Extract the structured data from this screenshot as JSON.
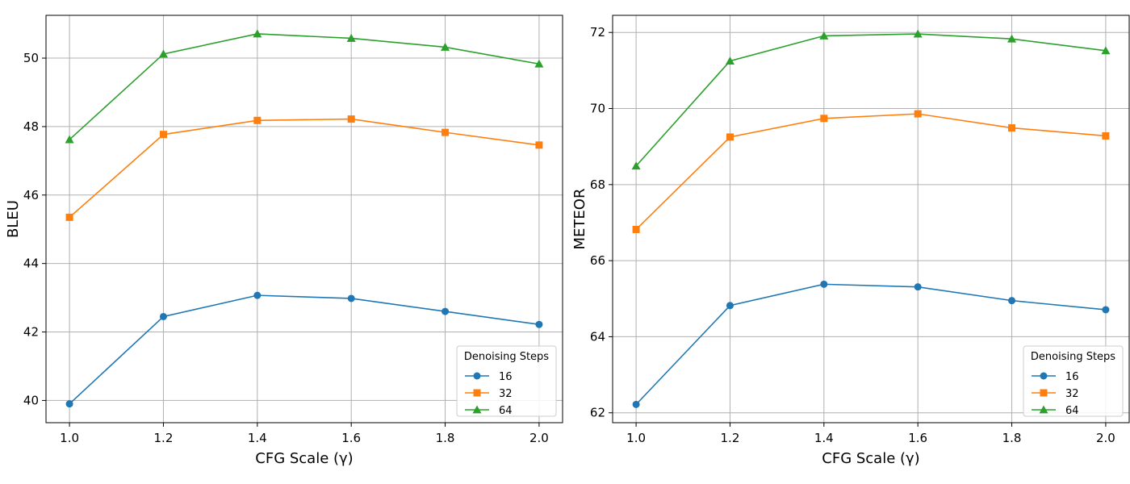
{
  "colors": {
    "16": "#1f77b4",
    "32": "#ff7f0e",
    "64": "#2ca02c",
    "grid": "#b0b0b0"
  },
  "chart_data": [
    {
      "type": "line",
      "title": "",
      "xlabel": "CFG Scale (γ)",
      "ylabel": "BLEU",
      "x": [
        1.0,
        1.2,
        1.4,
        1.6,
        1.8,
        2.0
      ],
      "xticks": [
        "1.0",
        "1.2",
        "1.4",
        "1.6",
        "1.8",
        "2.0"
      ],
      "xlim": [
        0.95,
        2.05
      ],
      "ylim": [
        39.35,
        51.25
      ],
      "yticks": [
        "40",
        "42",
        "44",
        "46",
        "48",
        "50"
      ],
      "yvals": [
        40,
        42,
        44,
        46,
        48,
        50
      ],
      "grid": true,
      "legend": {
        "title": "Denoising Steps",
        "placement": "lower-right"
      },
      "series": [
        {
          "name": "16",
          "marker": "circle",
          "values": [
            39.9,
            42.45,
            43.07,
            42.98,
            42.6,
            42.22
          ]
        },
        {
          "name": "32",
          "marker": "square",
          "values": [
            45.35,
            47.77,
            48.18,
            48.22,
            47.83,
            47.46
          ]
        },
        {
          "name": "64",
          "marker": "triangle",
          "values": [
            47.62,
            50.12,
            50.71,
            50.58,
            50.32,
            49.83
          ]
        }
      ]
    },
    {
      "type": "line",
      "title": "",
      "xlabel": "CFG Scale (γ)",
      "ylabel": "METEOR",
      "x": [
        1.0,
        1.2,
        1.4,
        1.6,
        1.8,
        2.0
      ],
      "xticks": [
        "1.0",
        "1.2",
        "1.4",
        "1.6",
        "1.8",
        "2.0"
      ],
      "xlim": [
        0.95,
        2.05
      ],
      "ylim": [
        61.74,
        72.45
      ],
      "yticks": [
        "62",
        "64",
        "66",
        "68",
        "70",
        "72"
      ],
      "yvals": [
        62,
        64,
        66,
        68,
        70,
        72
      ],
      "grid": true,
      "legend": {
        "title": "Denoising Steps",
        "placement": "lower-right"
      },
      "series": [
        {
          "name": "16",
          "marker": "circle",
          "values": [
            62.22,
            64.82,
            65.38,
            65.31,
            64.95,
            64.71
          ]
        },
        {
          "name": "32",
          "marker": "square",
          "values": [
            66.82,
            69.25,
            69.74,
            69.86,
            69.49,
            69.28
          ]
        },
        {
          "name": "64",
          "marker": "triangle",
          "values": [
            68.49,
            71.25,
            71.91,
            71.96,
            71.83,
            71.52
          ]
        }
      ]
    }
  ]
}
